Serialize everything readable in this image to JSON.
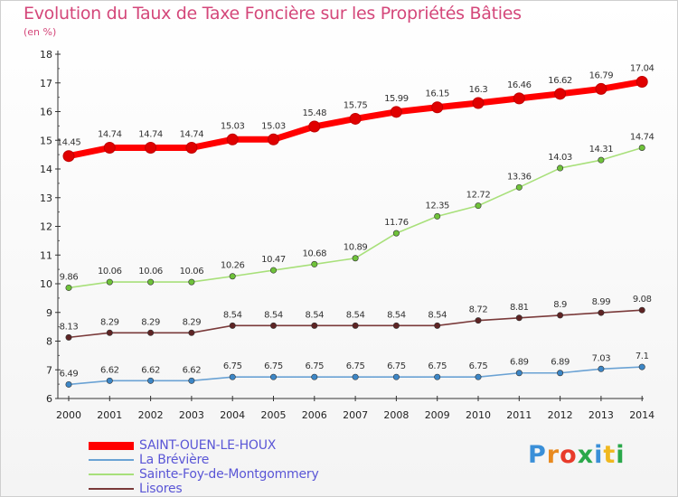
{
  "title": "Evolution du Taux de Taxe Foncière sur les Propriétés Bâties",
  "unit_label": "(en %)",
  "logo": {
    "text": "Proxiti",
    "letter_colors": [
      "#3a8fd8",
      "#e88a1f",
      "#e83a2a",
      "#2aa84a",
      "#3a8fd8",
      "#f0b81f",
      "#2aa84a"
    ]
  },
  "chart_data": {
    "type": "line",
    "title": "Evolution du Taux de Taxe Foncière sur les Propriétés Bâties",
    "ylabel": "(en %)",
    "xlabel": "",
    "ylim": [
      6,
      18
    ],
    "yticks": [
      6,
      7,
      8,
      9,
      10,
      11,
      12,
      13,
      14,
      15,
      16,
      17,
      18
    ],
    "x": [
      "2000",
      "2001",
      "2002",
      "2003",
      "2004",
      "2005",
      "2006",
      "2007",
      "2008",
      "2009",
      "2010",
      "2011",
      "2012",
      "2013",
      "2014"
    ],
    "grid": false,
    "legend_position": "bottom-left",
    "series": [
      {
        "name": "SAINT-OUEN-LE-HOUX",
        "color": "#ff0000",
        "point_color": "#e00000",
        "values": [
          14.45,
          14.74,
          14.74,
          14.74,
          15.03,
          15.03,
          15.48,
          15.75,
          15.99,
          16.15,
          16.3,
          16.46,
          16.62,
          16.79,
          17.04
        ],
        "labels": [
          "14.45",
          "14.74",
          "14.74",
          "14.74",
          "15.03",
          "15.03",
          "15.48",
          "15.75",
          "15.99",
          "16.15",
          "16.3",
          "16.46",
          "16.62",
          "16.79",
          "17.04"
        ]
      },
      {
        "name": "La Brévière",
        "color": "#6aa2d4",
        "point_color": "#3c86c6",
        "values": [
          6.49,
          6.62,
          6.62,
          6.62,
          6.75,
          6.75,
          6.75,
          6.75,
          6.75,
          6.75,
          6.75,
          6.89,
          6.89,
          7.03,
          7.1
        ],
        "labels": [
          "6.49",
          "6.62",
          "6.62",
          "6.62",
          "6.75",
          "6.75",
          "6.75",
          "6.75",
          "6.75",
          "6.75",
          "6.75",
          "6.89",
          "6.89",
          "7.03",
          "7.1"
        ]
      },
      {
        "name": "Sainte-Foy-de-Montgommery",
        "color": "#a8e07a",
        "point_color": "#6fc23a",
        "values": [
          9.86,
          10.06,
          10.06,
          10.06,
          10.26,
          10.47,
          10.68,
          10.89,
          11.76,
          12.35,
          12.72,
          13.36,
          14.03,
          14.31,
          14.74
        ],
        "labels": [
          "9.86",
          "10.06",
          "10.06",
          "10.06",
          "10.26",
          "10.47",
          "10.68",
          "10.89",
          "11.76",
          "12.35",
          "12.72",
          "13.36",
          "14.03",
          "14.31",
          "14.74"
        ]
      },
      {
        "name": "Lisores",
        "color": "#7a3a3a",
        "point_color": "#5e2424",
        "values": [
          8.13,
          8.29,
          8.29,
          8.29,
          8.54,
          8.54,
          8.54,
          8.54,
          8.54,
          8.54,
          8.72,
          8.81,
          8.9,
          8.99,
          9.08
        ],
        "labels": [
          "8.13",
          "8.29",
          "8.29",
          "8.29",
          "8.54",
          "8.54",
          "8.54",
          "8.54",
          "8.54",
          "8.54",
          "8.72",
          "8.81",
          "8.9",
          "8.99",
          "9.08"
        ]
      }
    ]
  }
}
